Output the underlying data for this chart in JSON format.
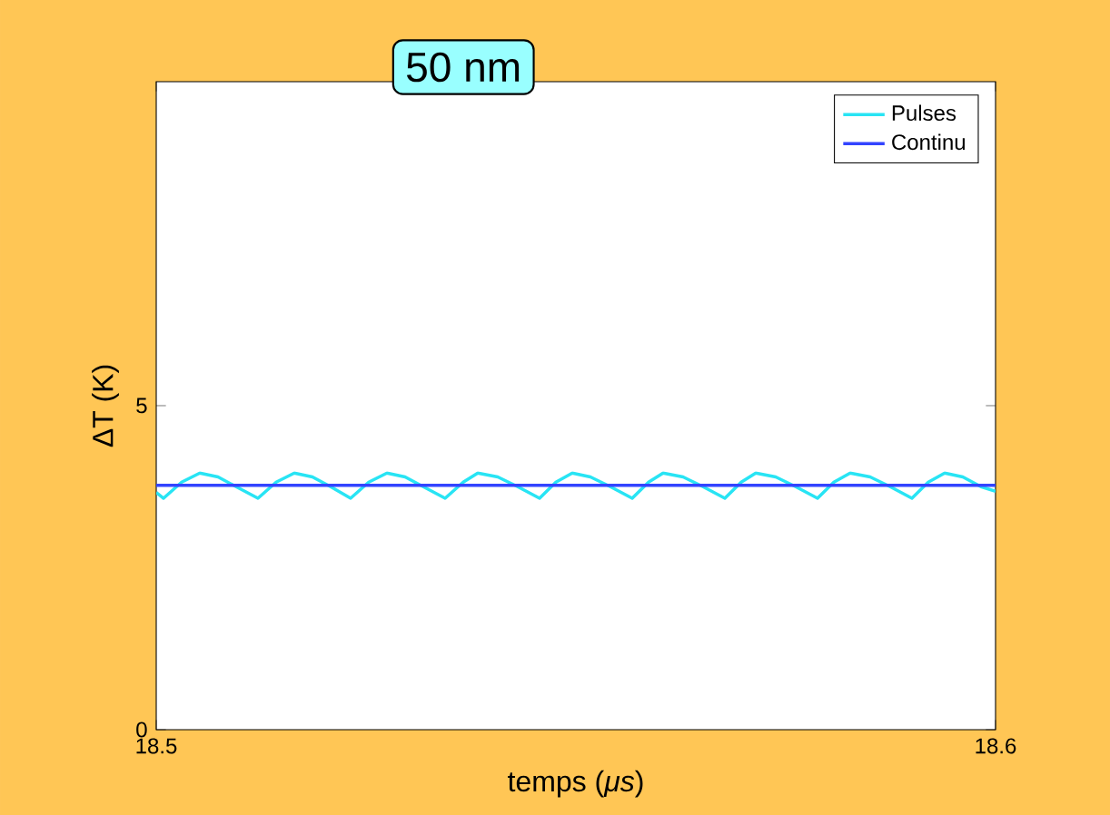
{
  "chart_data": {
    "type": "line",
    "title": "50 nm",
    "xlabel": "temps (*μs*)",
    "ylabel": "ΔT (K)",
    "xlim": [
      18.5,
      18.6
    ],
    "xticks": [
      18.5,
      18.6
    ],
    "ylim": [
      0,
      10
    ],
    "yticks": [
      0,
      5
    ],
    "legend": "top right",
    "grid": false,
    "marker": "none",
    "line_style": "solid",
    "series": [
      {
        "name": "Pulses",
        "color": "#28e4f4",
        "x": [
          18.5,
          18.50087,
          18.50303,
          18.50519,
          18.50736,
          18.50952,
          18.51212,
          18.51429,
          18.51645,
          18.51861,
          18.52078,
          18.52316,
          18.52532,
          18.52749,
          18.52965,
          18.53182,
          18.53442,
          18.53658,
          18.53831,
          18.54069,
          18.54307,
          18.54567,
          18.54762,
          18.54957,
          18.55173,
          18.55411,
          18.55671,
          18.55866,
          18.56039,
          18.56277,
          18.56515,
          18.56775,
          18.5697,
          18.57143,
          18.57381,
          18.57619,
          18.57879,
          18.58074,
          18.58268,
          18.58506,
          18.58745,
          18.59004,
          18.59199,
          18.59394,
          18.5961,
          18.59827,
          18.6
        ],
        "values": [
          3.66,
          3.57,
          3.82,
          3.96,
          3.9,
          3.75,
          3.57,
          3.82,
          3.96,
          3.9,
          3.75,
          3.57,
          3.82,
          3.96,
          3.9,
          3.75,
          3.57,
          3.82,
          3.96,
          3.9,
          3.75,
          3.57,
          3.82,
          3.96,
          3.9,
          3.75,
          3.57,
          3.82,
          3.96,
          3.9,
          3.75,
          3.57,
          3.82,
          3.96,
          3.9,
          3.75,
          3.57,
          3.82,
          3.96,
          3.9,
          3.75,
          3.57,
          3.82,
          3.96,
          3.9,
          3.75,
          3.68
        ]
      },
      {
        "name": "Continu",
        "color": "#3344ff",
        "x": [
          18.5,
          18.6
        ],
        "values": [
          3.77,
          3.77
        ]
      }
    ]
  }
}
